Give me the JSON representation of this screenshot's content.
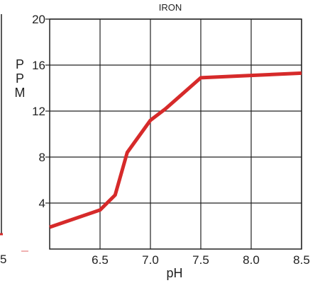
{
  "chart_data": {
    "type": "line",
    "title": "IRON",
    "xlabel": "pH",
    "ylabel": "P\nP\nM",
    "xlim": [
      6.0,
      8.5
    ],
    "ylim": [
      0,
      20
    ],
    "x_ticks": [
      6.5,
      7.0,
      7.5,
      8.0,
      8.5
    ],
    "x_tick_labels": [
      "6.5",
      "7.0",
      "7.5",
      "8.0",
      "8.5"
    ],
    "y_ticks": [
      4,
      8,
      12,
      16,
      20
    ],
    "y_tick_labels": [
      "4",
      "8",
      "12",
      "16",
      "20"
    ],
    "grid": true,
    "series": [
      {
        "color": "#d62a2a",
        "x": [
          6.0,
          6.5,
          6.65,
          6.77,
          7.0,
          7.15,
          7.5,
          8.0,
          8.5
        ],
        "y": [
          1.9,
          3.4,
          4.7,
          8.4,
          11.2,
          12.2,
          14.9,
          15.1,
          15.3
        ]
      }
    ],
    "left_fragment": {
      "label": "5",
      "color": "#d62a2a"
    }
  }
}
